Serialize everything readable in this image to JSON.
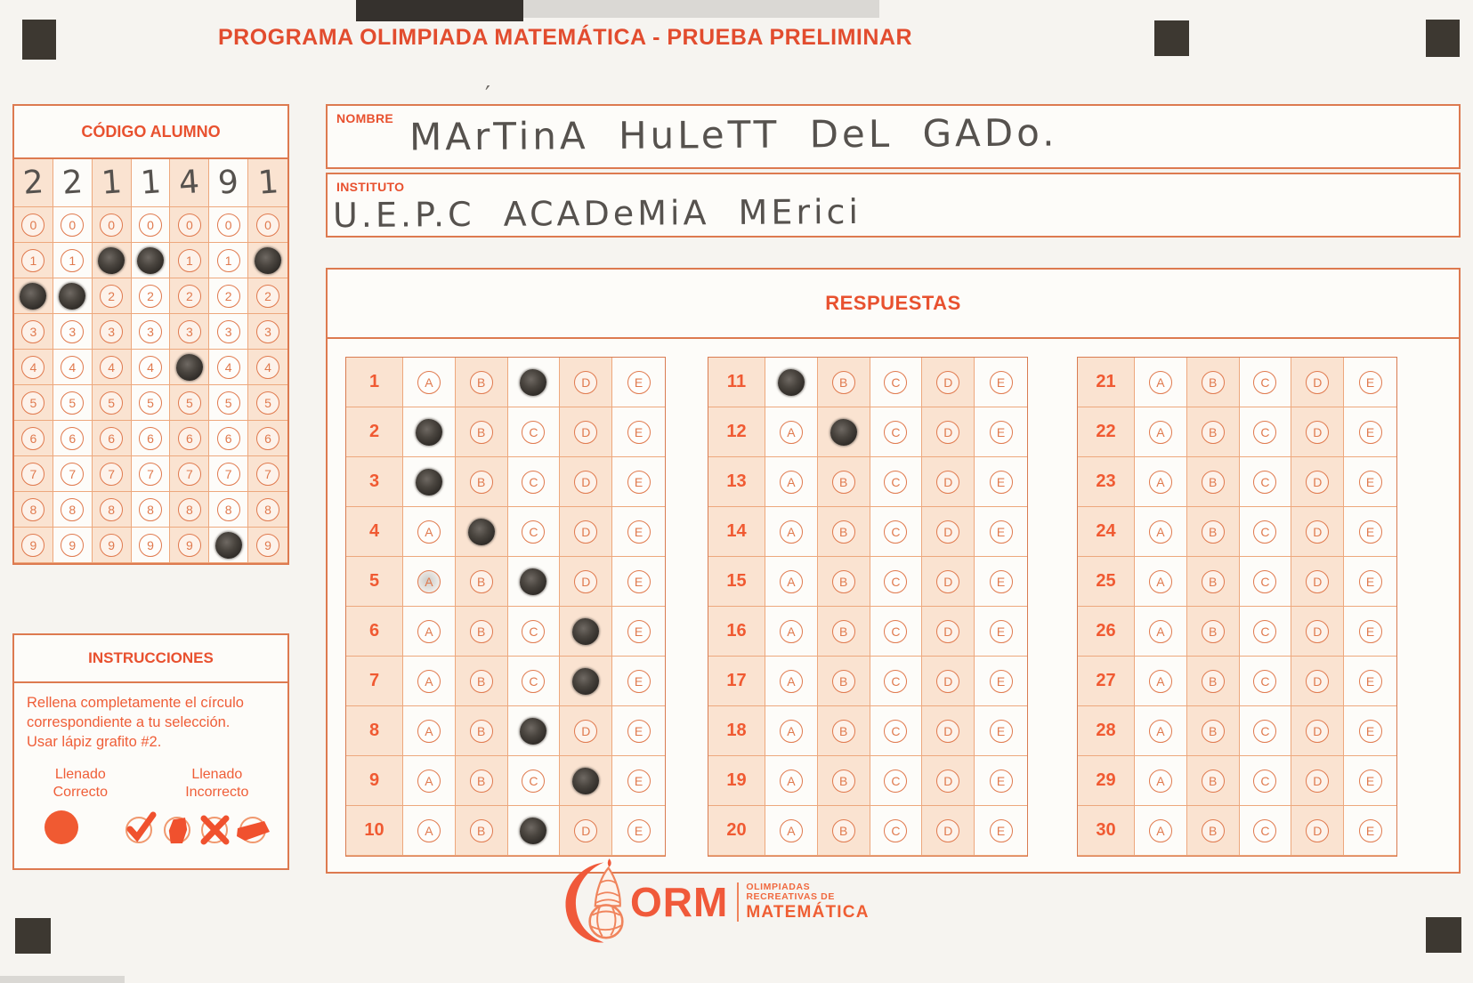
{
  "accent_color": "#e8512f",
  "pencil_color": "#35302b",
  "title": "PROGRAMA OLIMPIADA MATEMÁTICA  - PRUEBA PRELIMINAR",
  "codigo": {
    "title": "CÓDIGO ALUMNO",
    "handwritten_digits": [
      "2",
      "2",
      "1",
      "1",
      "4",
      "9",
      "1"
    ],
    "bubble_values": [
      "0",
      "1",
      "2",
      "3",
      "4",
      "5",
      "6",
      "7",
      "8",
      "9"
    ],
    "filled_digits": [
      "2",
      "2",
      "1",
      "1",
      "4",
      "9",
      "1"
    ]
  },
  "fields": {
    "nombre": {
      "label": "NOMBRE",
      "value": "MArTinA  HuLeTT DeL GADo."
    },
    "instituto": {
      "label": "INSTITUTO",
      "value": "U.E.P.C ACADeMiA  MErici"
    }
  },
  "respuestas": {
    "title": "RESPUESTAS",
    "options": [
      "A",
      "B",
      "C",
      "D",
      "E"
    ],
    "blocks": [
      {
        "start": 1,
        "end": 10
      },
      {
        "start": 11,
        "end": 20
      },
      {
        "start": 21,
        "end": 30
      }
    ],
    "marked_answers": {
      "1": "C",
      "2": "A",
      "3": "A",
      "4": "B",
      "5": "C",
      "6": "D",
      "7": "D",
      "8": "C",
      "9": "D",
      "10": "C",
      "11": "A",
      "12": "B"
    },
    "smudged": [
      {
        "question": 5,
        "option": "A"
      }
    ]
  },
  "instrucciones": {
    "title": "INSTRUCCIONES",
    "body_lines": [
      "Rellena completamente el círculo",
      "correspondiente a tu selección.",
      "Usar lápiz grafito #2."
    ],
    "correct_label_1": "Llenado",
    "correct_label_2": "Correcto",
    "incorrect_label_1": "Llenado",
    "incorrect_label_2": "Incorrecto"
  },
  "logo": {
    "acronym": "ORM",
    "line1": "OLIMPIADAS",
    "line2": "RECREATIVAS DE",
    "line3": "MATEMÁTICA"
  },
  "icons": {
    "registration_mark": "black-square",
    "correct_fill": "solid-circle",
    "incorrect_examples": [
      "check-mark",
      "vertical-scribble",
      "x-mark",
      "horizontal-scribble"
    ],
    "logo_icon": "crescent-shell"
  }
}
